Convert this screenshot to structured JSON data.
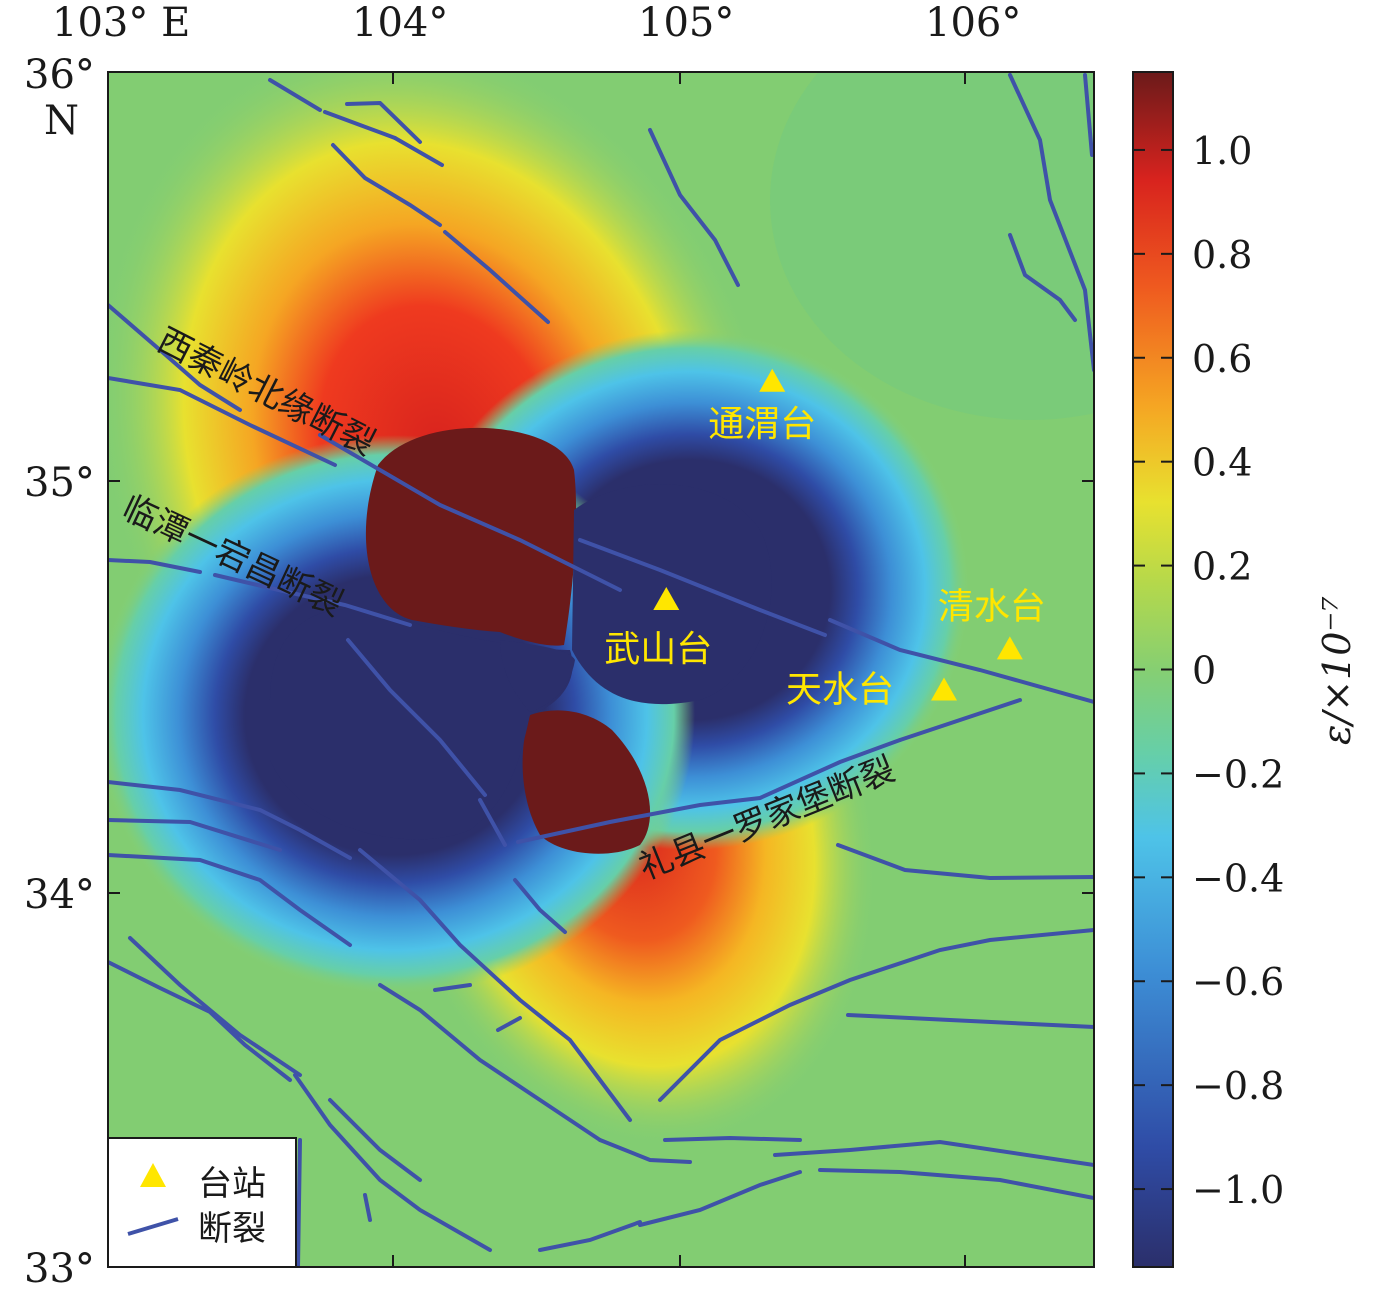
{
  "axes": {
    "x_ticks": [
      "103°  E",
      "104°",
      "105°",
      "106°"
    ],
    "y_ticks": [
      "36°",
      "35°",
      "34°",
      "33°"
    ],
    "y_top_unit": "N"
  },
  "colorbar": {
    "label": "ε/×10⁻⁷",
    "ticks": [
      "1.0",
      "0.8",
      "0.6",
      "0.4",
      "0.2",
      "0",
      "−0.2",
      "−0.4",
      "−0.6",
      "−0.8",
      "−1.0"
    ],
    "range": [
      -1.15,
      1.15
    ],
    "colormap": [
      "#2b2f6b",
      "#2f4ca6",
      "#3d8fd6",
      "#4ec3e8",
      "#66cfa8",
      "#86cf72",
      "#b3d84c",
      "#e8e12f",
      "#f5a623",
      "#ef5a1f",
      "#d8231e",
      "#6b1a1a"
    ]
  },
  "faults": {
    "color": "#3f52a8",
    "labels": [
      "西秦岭北缘断裂",
      "临潭一宕昌断裂",
      "礼县一罗家堡断裂"
    ]
  },
  "stations": [
    {
      "name": "通渭台",
      "lon": 105.32,
      "lat": 35.25
    },
    {
      "name": "武山台",
      "lon": 104.95,
      "lat": 34.72
    },
    {
      "name": "天水台",
      "lon": 105.92,
      "lat": 34.5
    },
    {
      "name": "清水台",
      "lon": 106.15,
      "lat": 34.6
    }
  ],
  "station_color": "#ffe600",
  "legend": {
    "station_label": "台站",
    "fault_label": "断裂"
  }
}
